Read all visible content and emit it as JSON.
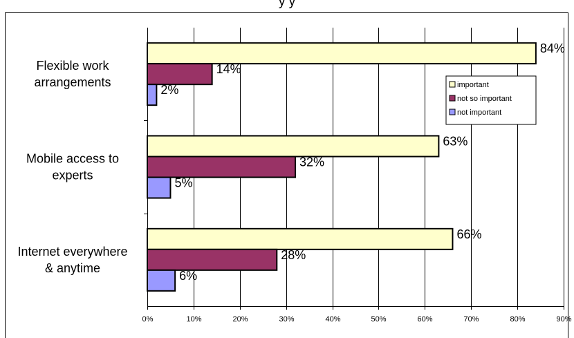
{
  "title_fragment": "y     y",
  "chart_data": {
    "type": "bar",
    "orientation": "horizontal",
    "categories": [
      [
        "Flexible work",
        "arrangements"
      ],
      [
        "Mobile access to",
        "experts"
      ],
      [
        "Internet everywhere",
        "& anytime"
      ]
    ],
    "series": [
      {
        "name": "important",
        "color": "#ffffcc",
        "values": [
          84,
          63,
          66
        ],
        "labels": [
          "84%",
          "63%",
          "66%"
        ]
      },
      {
        "name": "not so important",
        "color": "#993366",
        "values": [
          14,
          32,
          28
        ],
        "labels": [
          "14%",
          "32%",
          "28%"
        ]
      },
      {
        "name": "not important",
        "color": "#9999ff",
        "values": [
          2,
          5,
          6
        ],
        "labels": [
          "2%",
          "5%",
          "6%"
        ]
      }
    ],
    "x_ticks": [
      "0%",
      "10%",
      "20%",
      "30%",
      "40%",
      "50%",
      "60%",
      "70%",
      "80%",
      "90%"
    ],
    "xlim": [
      0,
      90
    ],
    "grid": true,
    "legend_position": "right"
  }
}
